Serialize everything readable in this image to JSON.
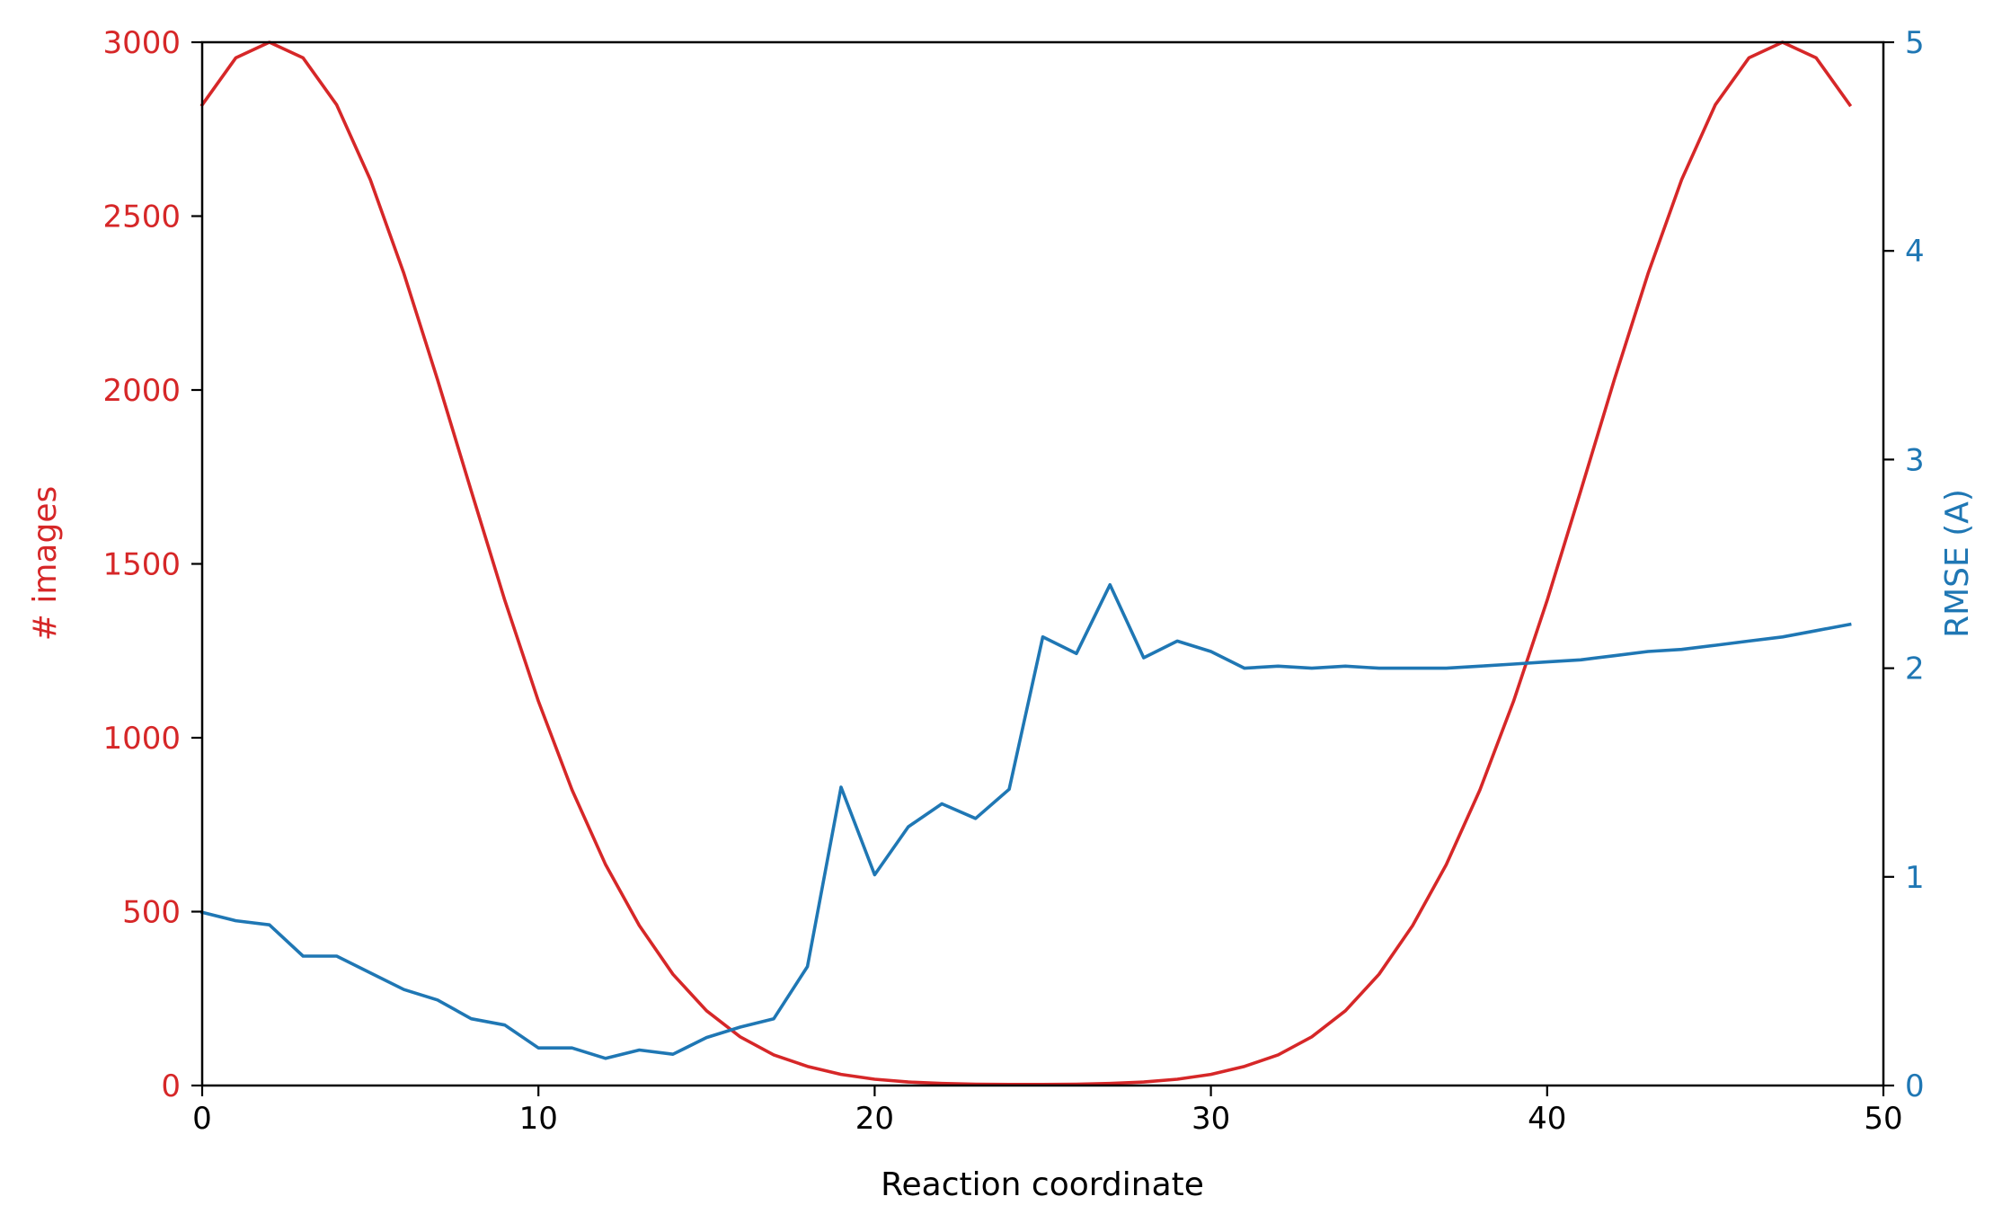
{
  "chart_data": {
    "type": "line",
    "xlabel": "Reaction coordinate",
    "xlim": [
      0,
      50
    ],
    "x_ticks": [
      "0",
      "10",
      "20",
      "30",
      "40",
      "50"
    ],
    "y_left": {
      "label": "# images",
      "lim": [
        0,
        3000
      ],
      "ticks": [
        "0",
        "500",
        "1000",
        "1500",
        "2000",
        "2500",
        "3000"
      ],
      "color": "#d62728"
    },
    "y_right": {
      "label": "RMSE (A)",
      "lim": [
        0,
        5
      ],
      "ticks": [
        "0",
        "1",
        "2",
        "3",
        "4",
        "5"
      ],
      "color": "#1f77b4"
    },
    "grid": false,
    "x": [
      0,
      1,
      2,
      3,
      4,
      5,
      6,
      7,
      8,
      9,
      10,
      11,
      12,
      13,
      14,
      15,
      16,
      17,
      18,
      19,
      20,
      21,
      22,
      23,
      24,
      25,
      26,
      27,
      28,
      29,
      30,
      31,
      32,
      33,
      34,
      35,
      36,
      37,
      38,
      39,
      40,
      41,
      42,
      43,
      44,
      45,
      46,
      47,
      48,
      49
    ],
    "series": [
      {
        "axis": "left",
        "color": "#d62728",
        "values": [
          2820,
          2955,
          3000,
          2955,
          2820,
          2605,
          2335,
          2030,
          1710,
          1395,
          1105,
          850,
          635,
          460,
          320,
          215,
          140,
          88,
          55,
          32,
          18,
          10,
          6,
          4,
          3,
          3,
          4,
          6,
          10,
          18,
          32,
          55,
          88,
          140,
          215,
          320,
          460,
          635,
          850,
          1105,
          1395,
          1710,
          2030,
          2335,
          2605,
          2820,
          2955,
          3000,
          2955,
          2820
        ]
      },
      {
        "axis": "right",
        "color": "#1f77b4",
        "values": [
          0.83,
          0.79,
          0.77,
          0.62,
          0.62,
          0.54,
          0.46,
          0.41,
          0.32,
          0.29,
          0.18,
          0.18,
          0.13,
          0.17,
          0.15,
          0.23,
          0.28,
          0.32,
          0.57,
          1.43,
          1.01,
          1.24,
          1.35,
          1.28,
          1.42,
          2.15,
          2.07,
          2.4,
          2.05,
          2.13,
          2.08,
          2.0,
          2.01,
          2.0,
          2.01,
          2.0,
          2.0,
          2.0,
          2.01,
          2.02,
          2.03,
          2.04,
          2.06,
          2.08,
          2.09,
          2.11,
          2.13,
          2.15,
          2.18,
          2.21
        ]
      }
    ]
  }
}
